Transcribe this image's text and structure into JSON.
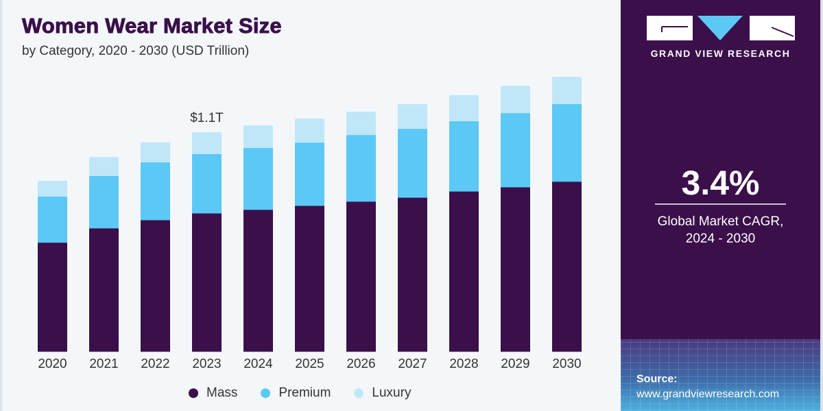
{
  "header": {
    "title": "Women Wear Market Size",
    "subtitle": "by Category, 2020 - 2030 (USD Trillion)"
  },
  "brand": {
    "name": "GRAND VIEW RESEARCH",
    "colors": {
      "panel": "#3a0f4a",
      "accent": "#5bc8f5"
    }
  },
  "highlight": {
    "cagr_value": "3.4%",
    "cagr_label_line1": "Global Market CAGR,",
    "cagr_label_line2": "2024 - 2030"
  },
  "source": {
    "label": "Source:",
    "url": "www.grandviewresearch.com"
  },
  "chart_data": {
    "type": "bar",
    "stacked": true,
    "title": "Women Wear Market Size",
    "subtitle": "by Category, 2020 - 2030 (USD Trillion)",
    "xlabel": "",
    "ylabel": "USD Trillion",
    "ylim": [
      0,
      1.5
    ],
    "grid": false,
    "legend_position": "bottom",
    "categories": [
      "2020",
      "2021",
      "2022",
      "2023",
      "2024",
      "2025",
      "2026",
      "2027",
      "2028",
      "2029",
      "2030"
    ],
    "series": [
      {
        "name": "Mass",
        "color": "#3a0f4a",
        "values": [
          0.547,
          0.619,
          0.66,
          0.694,
          0.712,
          0.732,
          0.753,
          0.773,
          0.804,
          0.825,
          0.853
        ]
      },
      {
        "name": "Premium",
        "color": "#5bc8f5",
        "values": [
          0.23,
          0.261,
          0.289,
          0.296,
          0.309,
          0.316,
          0.333,
          0.344,
          0.351,
          0.371,
          0.388
        ]
      },
      {
        "name": "Luxury",
        "color": "#bfe7f8",
        "values": [
          0.079,
          0.096,
          0.1,
          0.11,
          0.113,
          0.12,
          0.117,
          0.124,
          0.131,
          0.137,
          0.137
        ]
      }
    ],
    "annotations": [
      {
        "category": "2023",
        "text": "$1.1T"
      }
    ]
  }
}
